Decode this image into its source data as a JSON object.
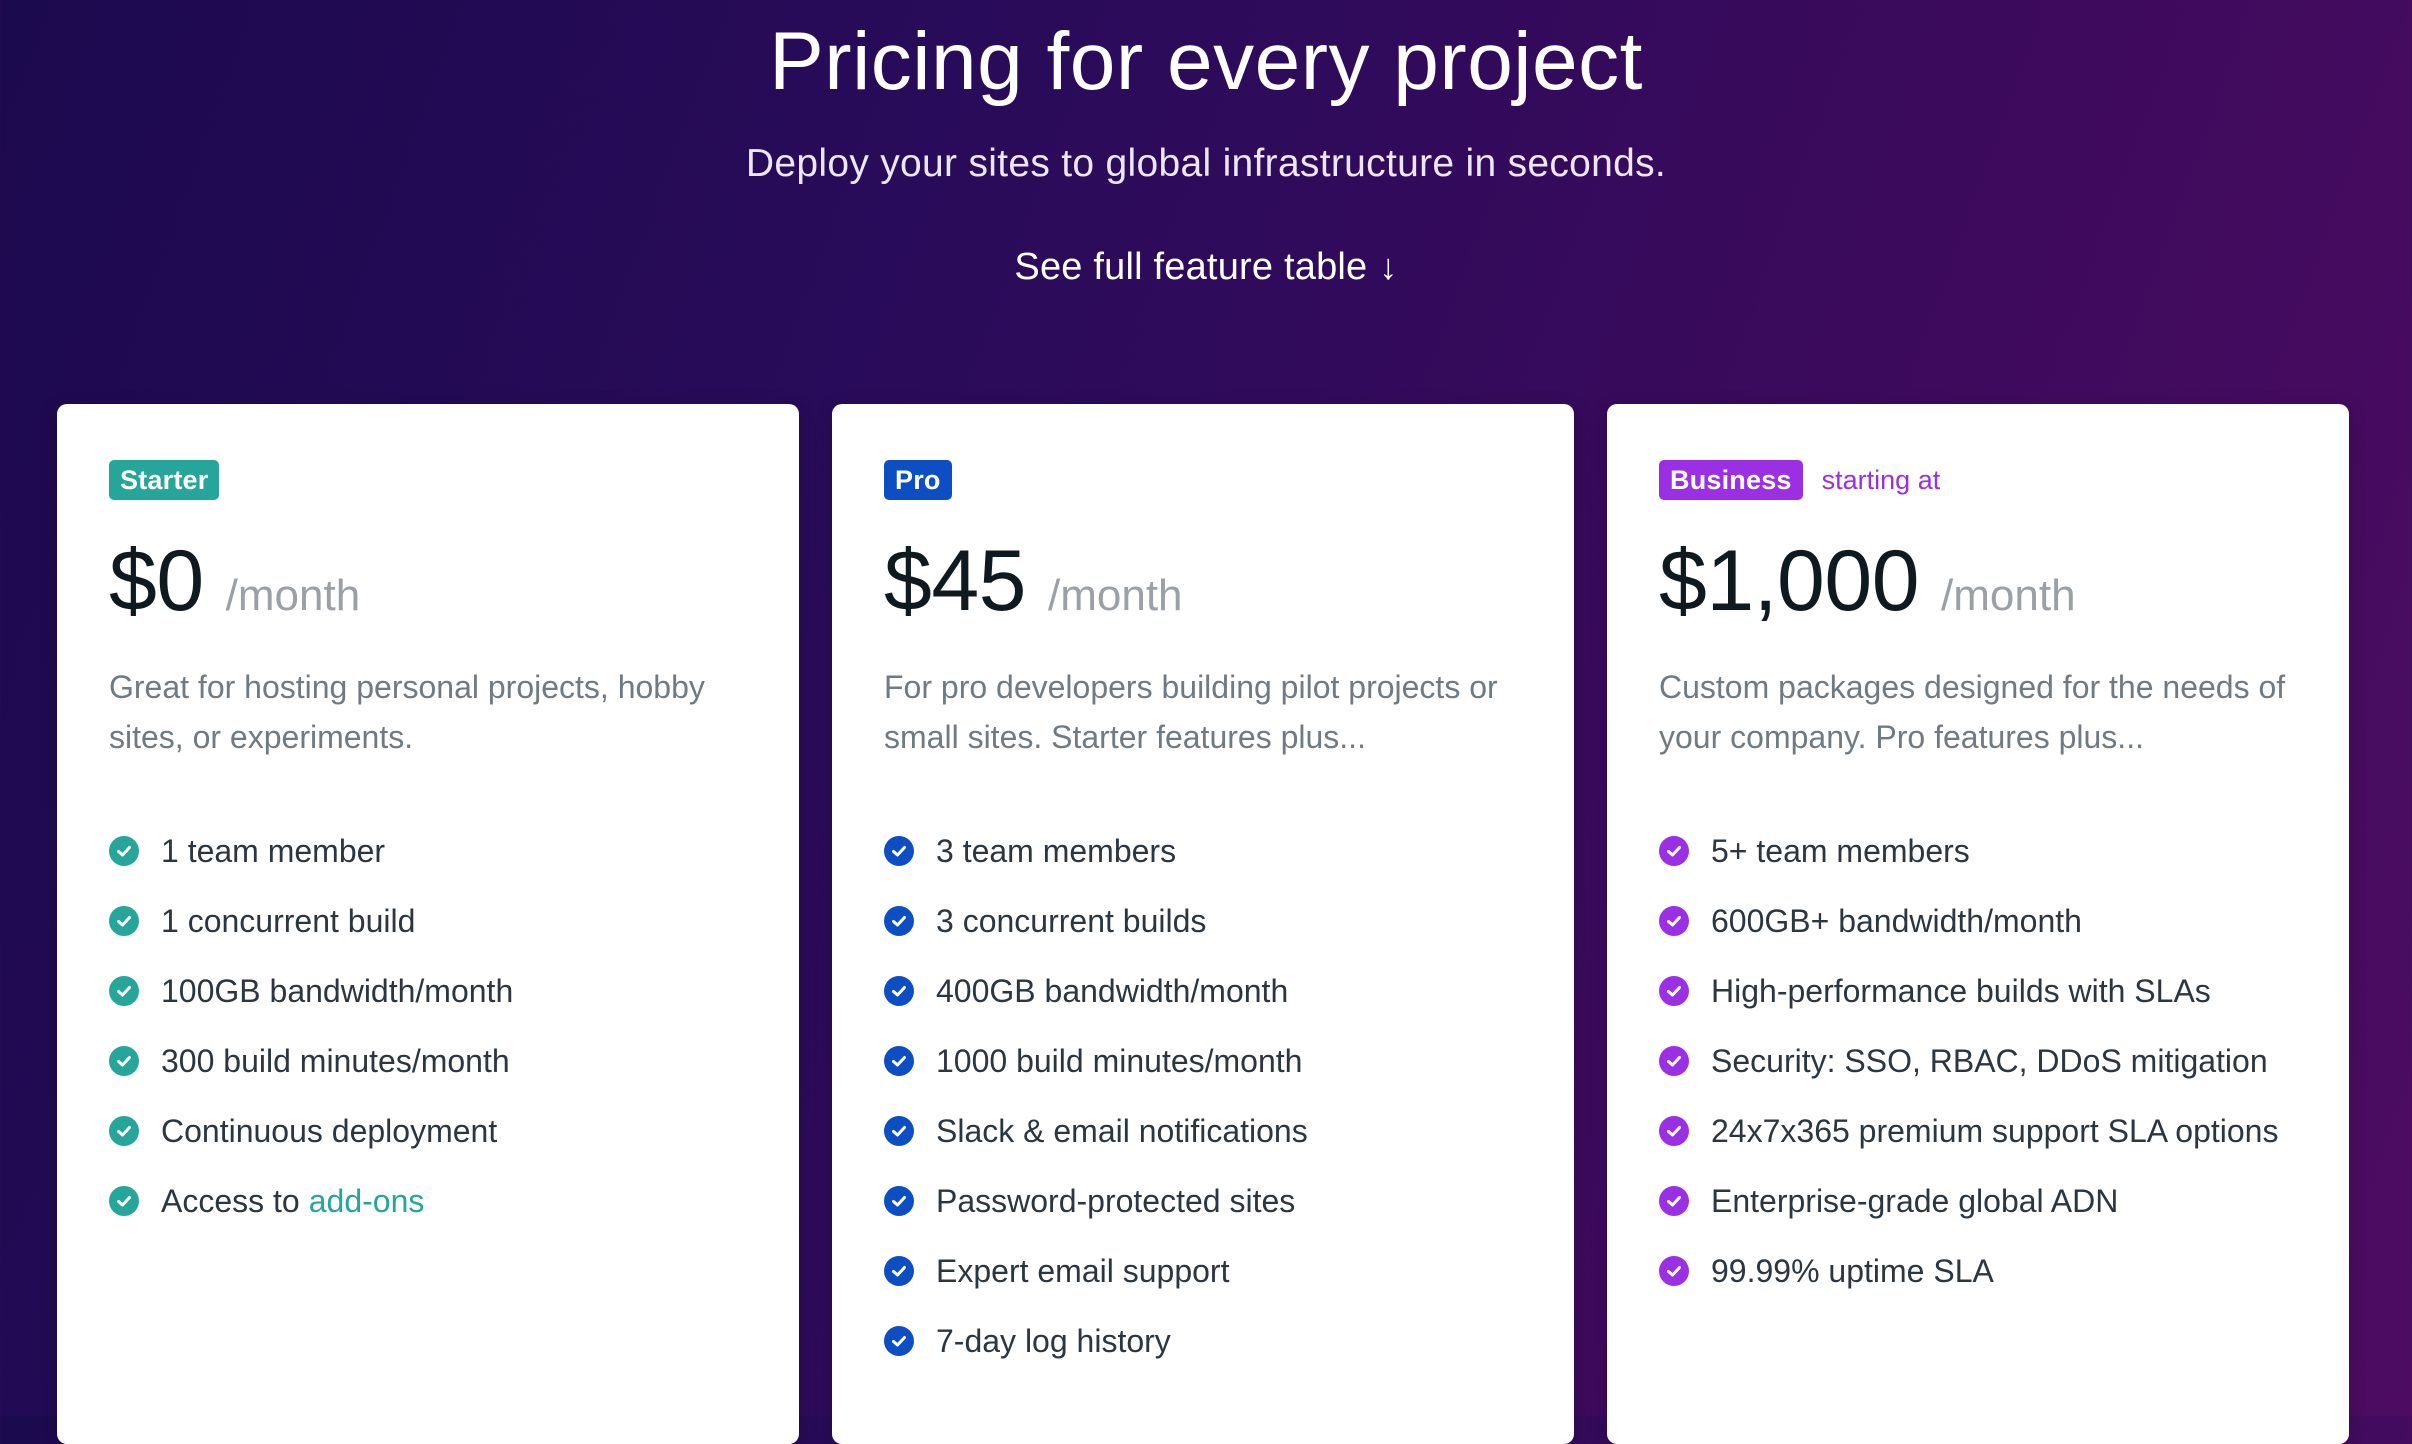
{
  "hero": {
    "title": "Pricing for every project",
    "subtitle": "Deploy your sites to global infrastructure in seconds.",
    "link_label": "See full feature table",
    "link_arrow": "↓"
  },
  "colors": {
    "starter": "#26a69a",
    "pro": "#0d4fc2",
    "business": "#9b2fe3"
  },
  "plans": {
    "starter": {
      "badge": "Starter",
      "price": "$0",
      "period": "/month",
      "description": "Great for hosting personal projects, hobby sites, or experiments.",
      "features": [
        "1 team member",
        "1 concurrent build",
        "100GB bandwidth/month",
        "300 build minutes/month",
        "Continuous deployment",
        "Access to"
      ],
      "feature_link": "add-ons",
      "check_icon": "check-circle-icon"
    },
    "pro": {
      "badge": "Pro",
      "price": "$45",
      "period": "/month",
      "description": "For pro developers building pilot projects or small sites. Starter features plus...",
      "features": [
        "3 team members",
        "3 concurrent builds",
        "400GB bandwidth/month",
        "1000 build minutes/month",
        "Slack & email notifications",
        "Password-protected sites",
        "Expert email support",
        "7-day log history"
      ],
      "check_icon": "check-circle-icon"
    },
    "business": {
      "badge": "Business",
      "starting_at": "starting at",
      "price": "$1,000",
      "period": "/month",
      "description": "Custom packages designed for the needs of your company. Pro features plus...",
      "features": [
        "5+ team members",
        "600GB+ bandwidth/month",
        "High-performance builds with SLAs",
        "Security: SSO, RBAC, DDoS mitigation",
        "24x7x365 premium support SLA options",
        "Enterprise-grade global ADN",
        "99.99% uptime SLA"
      ],
      "check_icon": "check-circle-icon"
    }
  }
}
